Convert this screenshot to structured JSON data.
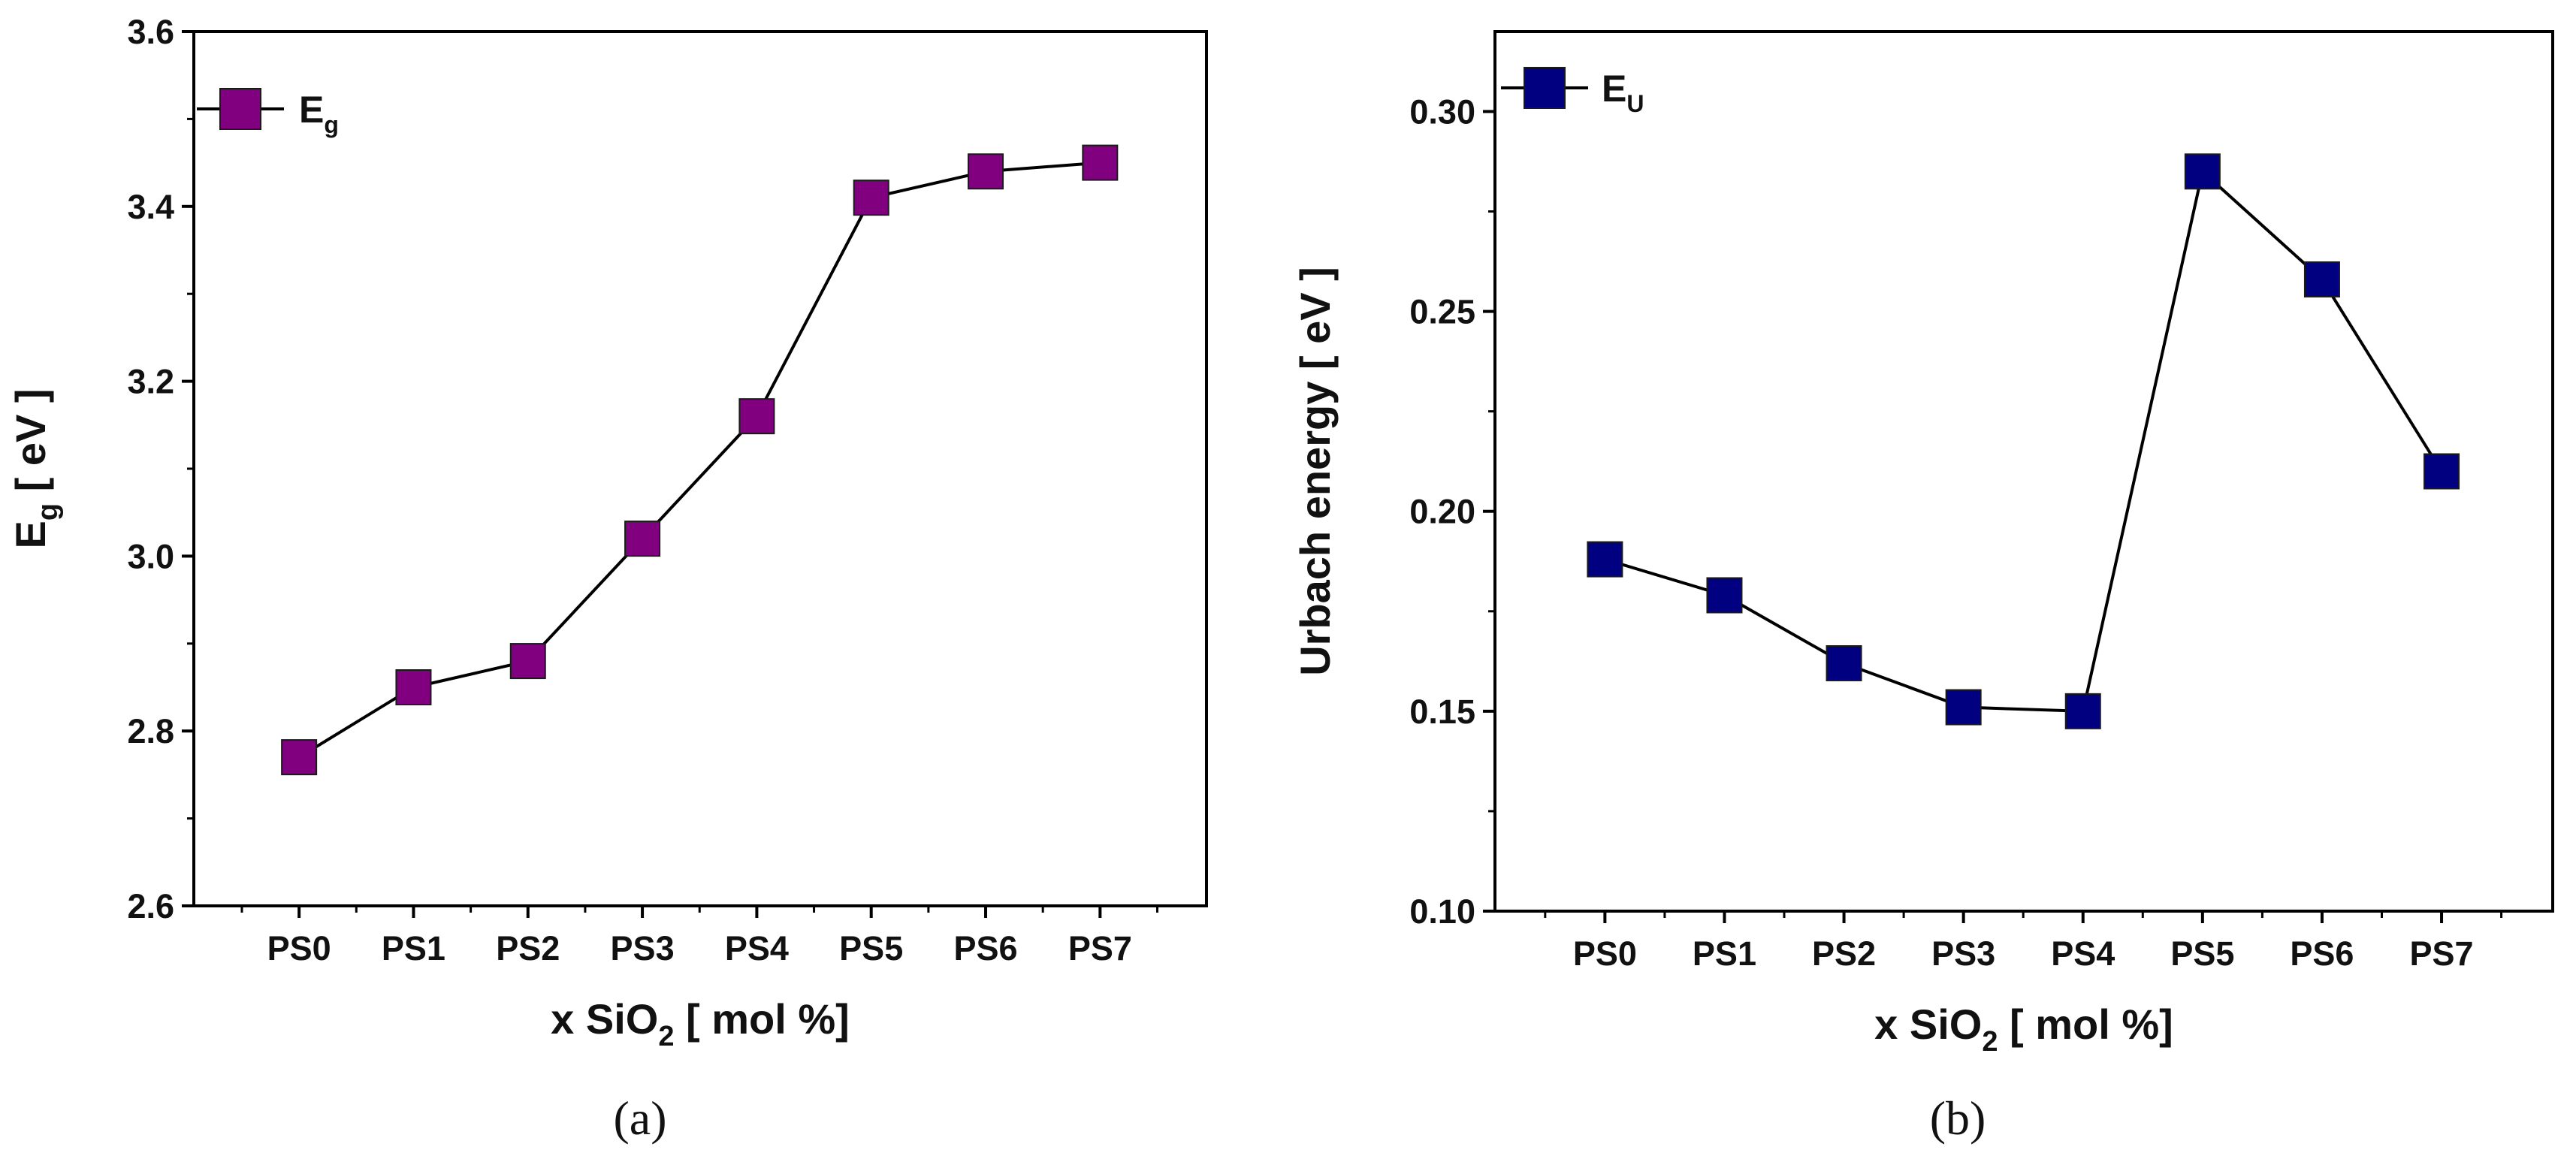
{
  "chart_data": [
    {
      "type": "line",
      "panel_label": "(a)",
      "categories": [
        "PS0",
        "PS1",
        "PS2",
        "PS3",
        "PS4",
        "PS5",
        "PS6",
        "PS7"
      ],
      "series": [
        {
          "name": "E",
          "name_sub": "g",
          "values": [
            2.77,
            2.85,
            2.88,
            3.02,
            3.16,
            3.41,
            3.44,
            3.45
          ]
        }
      ],
      "xlabel": {
        "pre": "x SiO",
        "sub": "2",
        "post": " [ mol %]"
      },
      "ylabel": {
        "pre": "E",
        "sub": "g",
        "post": " [ eV ]"
      },
      "ylim": [
        2.6,
        3.6
      ],
      "yticks": [
        "2.6",
        "2.8",
        "3.0",
        "3.2",
        "3.4",
        "3.6"
      ],
      "marker": "square",
      "marker_color": "#800080",
      "legend_position": "top-left"
    },
    {
      "type": "line",
      "panel_label": "(b)",
      "categories": [
        "PS0",
        "PS1",
        "PS2",
        "PS3",
        "PS4",
        "PS5",
        "PS6",
        "PS7"
      ],
      "series": [
        {
          "name": "E",
          "name_sub": "U",
          "values": [
            0.188,
            0.179,
            0.162,
            0.151,
            0.15,
            0.285,
            0.258,
            0.21
          ]
        }
      ],
      "xlabel": {
        "pre": "x SiO",
        "sub": "2",
        "post": " [ mol %]"
      },
      "ylabel": {
        "pre": "Urbach energy [ eV ]",
        "sub": "",
        "post": ""
      },
      "ylim": [
        0.1,
        0.32
      ],
      "yticks": [
        "0.10",
        "0.15",
        "0.20",
        "0.25",
        "0.30"
      ],
      "marker": "square",
      "marker_color": "#000080",
      "legend_position": "top-left"
    }
  ]
}
